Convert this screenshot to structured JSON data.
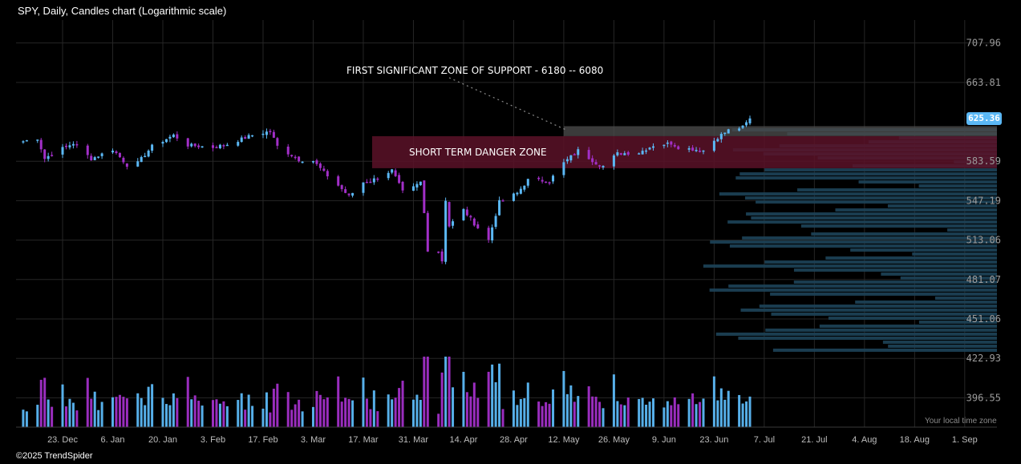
{
  "header": {
    "title": "SPY, Daily, Candles chart (Logarithmic scale)"
  },
  "footer": {
    "copyright": "©2025 TrendSpider",
    "timezone_note": "Your local time zone"
  },
  "colors": {
    "up": "#5bb8f5",
    "down": "#a22fc8",
    "background": "#000000",
    "grid": "#262626",
    "volume_profile": "#1d4258",
    "danger_zone": "#5a1228",
    "support_zone": "#4a4a4a",
    "badge": "#5bb8f5"
  },
  "price_badge": "625.36",
  "chart_data": {
    "type": "candlestick",
    "title": "SPY, Daily, Candles chart (Logarithmic scale)",
    "yscale": "log",
    "ylim": [
      378,
      735
    ],
    "xlim": [
      "2024-12-10",
      "2025-09-10"
    ],
    "y_ticks": [
      707.96,
      663.81,
      625.36,
      583.59,
      547.19,
      513.06,
      481.07,
      451.06,
      422.93,
      396.55
    ],
    "x_ticks": [
      {
        "date": "2024-12-23",
        "label": "23. Dec"
      },
      {
        "date": "2025-01-06",
        "label": "6. Jan"
      },
      {
        "date": "2025-01-20",
        "label": "20. Jan"
      },
      {
        "date": "2025-02-03",
        "label": "3. Feb"
      },
      {
        "date": "2025-02-17",
        "label": "17. Feb"
      },
      {
        "date": "2025-03-03",
        "label": "3. Mar"
      },
      {
        "date": "2025-03-17",
        "label": "17. Mar"
      },
      {
        "date": "2025-03-31",
        "label": "31. Mar"
      },
      {
        "date": "2025-04-14",
        "label": "14. Apr"
      },
      {
        "date": "2025-04-28",
        "label": "28. Apr"
      },
      {
        "date": "2025-05-12",
        "label": "12. May"
      },
      {
        "date": "2025-05-26",
        "label": "26. May"
      },
      {
        "date": "2025-06-09",
        "label": "9. Jun"
      },
      {
        "date": "2025-06-23",
        "label": "23. Jun"
      },
      {
        "date": "2025-07-07",
        "label": "7. Jul"
      },
      {
        "date": "2025-07-21",
        "label": "21. Jul"
      },
      {
        "date": "2025-08-04",
        "label": "4. Aug"
      },
      {
        "date": "2025-08-18",
        "label": "18. Aug"
      },
      {
        "date": "2025-09-01",
        "label": "1. Sep"
      }
    ],
    "closes": [
      {
        "date": "2024-12-12",
        "close": 603
      },
      {
        "date": "2024-12-16",
        "close": 606
      },
      {
        "date": "2024-12-18",
        "close": 586
      },
      {
        "date": "2024-12-20",
        "close": 591
      },
      {
        "date": "2024-12-26",
        "close": 601
      },
      {
        "date": "2024-12-31",
        "close": 586
      },
      {
        "date": "2025-01-06",
        "close": 595
      },
      {
        "date": "2025-01-10",
        "close": 580
      },
      {
        "date": "2025-01-13",
        "close": 582
      },
      {
        "date": "2025-01-17",
        "close": 598
      },
      {
        "date": "2025-01-23",
        "close": 609
      },
      {
        "date": "2025-01-27",
        "close": 599
      },
      {
        "date": "2025-02-03",
        "close": 597
      },
      {
        "date": "2025-02-07",
        "close": 600
      },
      {
        "date": "2025-02-14",
        "close": 609
      },
      {
        "date": "2025-02-19",
        "close": 613
      },
      {
        "date": "2025-02-21",
        "close": 598
      },
      {
        "date": "2025-02-27",
        "close": 585
      },
      {
        "date": "2025-03-03",
        "close": 584
      },
      {
        "date": "2025-03-06",
        "close": 573
      },
      {
        "date": "2025-03-10",
        "close": 561
      },
      {
        "date": "2025-03-13",
        "close": 551
      },
      {
        "date": "2025-03-17",
        "close": 564
      },
      {
        "date": "2025-03-19",
        "close": 565
      },
      {
        "date": "2025-03-25",
        "close": 575
      },
      {
        "date": "2025-03-28",
        "close": 555
      },
      {
        "date": "2025-03-31",
        "close": 559
      },
      {
        "date": "2025-04-02",
        "close": 564
      },
      {
        "date": "2025-04-03",
        "close": 536
      },
      {
        "date": "2025-04-04",
        "close": 505
      },
      {
        "date": "2025-04-07",
        "close": 504
      },
      {
        "date": "2025-04-08",
        "close": 496
      },
      {
        "date": "2025-04-09",
        "close": 548
      },
      {
        "date": "2025-04-10",
        "close": 525
      },
      {
        "date": "2025-04-14",
        "close": 539
      },
      {
        "date": "2025-04-17",
        "close": 527
      },
      {
        "date": "2025-04-21",
        "close": 513
      },
      {
        "date": "2025-04-24",
        "close": 546
      },
      {
        "date": "2025-04-29",
        "close": 554
      },
      {
        "date": "2025-05-02",
        "close": 566
      },
      {
        "date": "2025-05-08",
        "close": 565
      },
      {
        "date": "2025-05-12",
        "close": 582
      },
      {
        "date": "2025-05-16",
        "close": 594
      },
      {
        "date": "2025-05-21",
        "close": 582
      },
      {
        "date": "2025-05-23",
        "close": 579
      },
      {
        "date": "2025-05-27",
        "close": 591
      },
      {
        "date": "2025-06-02",
        "close": 592
      },
      {
        "date": "2025-06-06",
        "close": 599
      },
      {
        "date": "2025-06-11",
        "close": 601
      },
      {
        "date": "2025-06-13",
        "close": 597
      },
      {
        "date": "2025-06-20",
        "close": 594
      },
      {
        "date": "2025-06-24",
        "close": 607
      },
      {
        "date": "2025-06-27",
        "close": 614
      },
      {
        "date": "2025-07-01",
        "close": 617
      },
      {
        "date": "2025-07-03",
        "close": 625.36
      }
    ],
    "annotations": [
      {
        "label": "FIRST SIGNIFICANT ZONE OF SUPPORT - 6180 -- 6080",
        "type": "support zone"
      },
      {
        "label": "SHORT TERM DANGER ZONE",
        "type": "danger zone"
      }
    ],
    "grid": true,
    "volume_panel": true,
    "volume_profile": true
  }
}
